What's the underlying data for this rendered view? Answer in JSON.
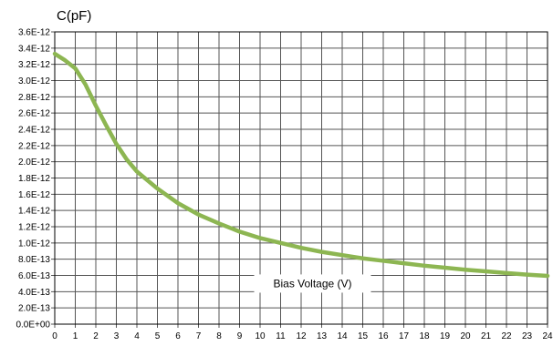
{
  "chart_data": {
    "type": "line",
    "title": "",
    "ylabel": "C(pF)",
    "xlabel": "Bias Voltage (V)",
    "xlim": [
      0,
      24
    ],
    "ylim": [
      0,
      3.6e-12
    ],
    "grid": true,
    "line_color": "#8db652",
    "x_ticks": [
      "0",
      "1",
      "2",
      "3",
      "4",
      "5",
      "6",
      "7",
      "8",
      "9",
      "10",
      "11",
      "12",
      "13",
      "14",
      "15",
      "16",
      "17",
      "18",
      "19",
      "20",
      "21",
      "22",
      "23",
      "24"
    ],
    "y_ticks": [
      "0.0E+00",
      "2.0E-13",
      "4.0E-13",
      "6.0E-13",
      "8.0E-13",
      "1.0E-12",
      "1.2E-12",
      "1.4E-12",
      "1.6E-12",
      "1.8E-12",
      "2.0E-12",
      "2.2E-12",
      "2.4E-12",
      "2.6E-12",
      "2.8E-12",
      "3.0E-12",
      "3.2E-12",
      "3.4E-12",
      "3.6E-12"
    ],
    "series": [
      {
        "x": [
          0,
          0.5,
          1,
          1.5,
          2,
          2.5,
          3,
          3.5,
          4,
          5,
          6,
          7,
          8,
          9,
          10,
          11,
          12,
          13,
          14,
          15,
          16,
          17,
          18,
          19,
          20,
          21,
          22,
          23,
          24
        ],
        "values": [
          3.33e-12,
          3.25e-12,
          3.15e-12,
          2.95e-12,
          2.69e-12,
          2.45e-12,
          2.22e-12,
          2.03e-12,
          1.88e-12,
          1.67e-12,
          1.49e-12,
          1.35e-12,
          1.24e-12,
          1.14e-12,
          1.06e-12,
          1e-12,
          9.4e-13,
          8.9e-13,
          8.5e-13,
          8.1e-13,
          7.8e-13,
          7.5e-13,
          7.2e-13,
          6.95e-13,
          6.7e-13,
          6.5e-13,
          6.3e-13,
          6.1e-13,
          5.95e-13
        ]
      }
    ]
  }
}
